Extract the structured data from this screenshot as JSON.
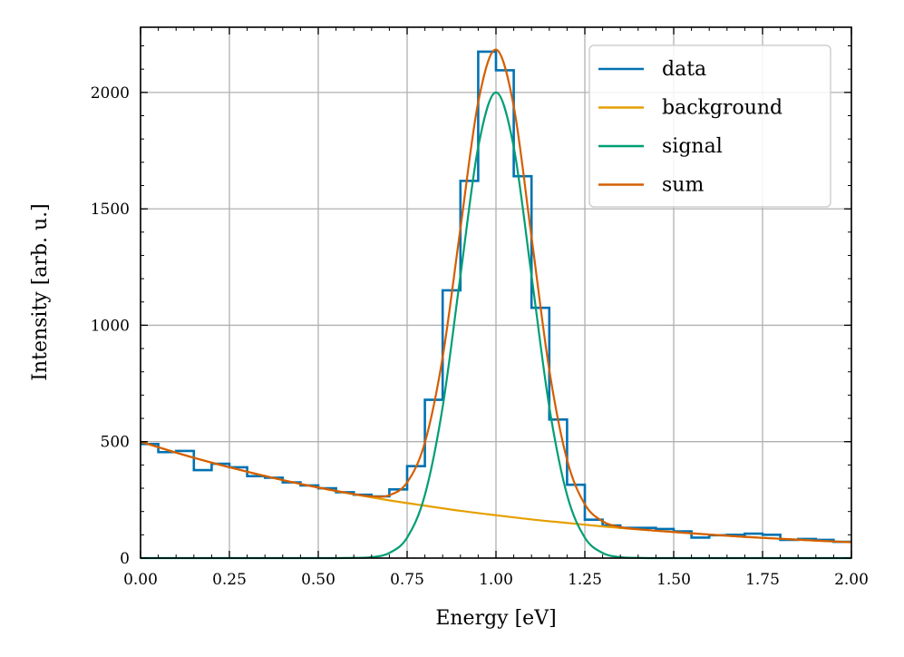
{
  "chart_data": {
    "type": "line",
    "title": "",
    "xlabel": "Energy [eV]",
    "ylabel": "Intensity [arb. u.]",
    "xlim": [
      0.0,
      2.0
    ],
    "ylim": [
      0,
      2280
    ],
    "grid": true,
    "legend_position": "top-right",
    "x_ticks": [
      {
        "value": 0.0,
        "label": "0.00"
      },
      {
        "value": 0.25,
        "label": "0.25"
      },
      {
        "value": 0.5,
        "label": "0.50"
      },
      {
        "value": 0.75,
        "label": "0.75"
      },
      {
        "value": 1.0,
        "label": "1.00"
      },
      {
        "value": 1.25,
        "label": "1.25"
      },
      {
        "value": 1.5,
        "label": "1.50"
      },
      {
        "value": 1.75,
        "label": "1.75"
      },
      {
        "value": 2.0,
        "label": "2.00"
      }
    ],
    "y_ticks": [
      {
        "value": 0,
        "label": "0"
      },
      {
        "value": 500,
        "label": "500"
      },
      {
        "value": 1000,
        "label": "1000"
      },
      {
        "value": 1500,
        "label": "1500"
      },
      {
        "value": 2000,
        "label": "2000"
      }
    ],
    "series": [
      {
        "name": "data",
        "kind": "step-histogram",
        "color": "#0072b2",
        "bin_edges": [
          0.0,
          0.05,
          0.1,
          0.15,
          0.2,
          0.25,
          0.3,
          0.35,
          0.4,
          0.45,
          0.5,
          0.55,
          0.6,
          0.65,
          0.7,
          0.75,
          0.8,
          0.85,
          0.9,
          0.95,
          1.0,
          1.05,
          1.1,
          1.15,
          1.2,
          1.25,
          1.3,
          1.35,
          1.4,
          1.45,
          1.5,
          1.55,
          1.6,
          1.65,
          1.7,
          1.75,
          1.8,
          1.85,
          1.9,
          1.95,
          2.0
        ],
        "values": [
          490,
          455,
          460,
          378,
          405,
          390,
          352,
          345,
          325,
          312,
          300,
          283,
          272,
          265,
          295,
          395,
          680,
          1150,
          1620,
          2175,
          2095,
          1640,
          1075,
          595,
          315,
          165,
          140,
          130,
          130,
          125,
          115,
          88,
          98,
          100,
          105,
          100,
          78,
          82,
          78,
          70
        ]
      },
      {
        "name": "background",
        "kind": "function",
        "color": "#e69f00",
        "x": [
          0.0,
          0.1,
          0.2,
          0.3,
          0.4,
          0.5,
          0.6,
          0.7,
          0.8,
          0.9,
          1.0,
          1.1,
          1.2,
          1.3,
          1.4,
          1.5,
          1.6,
          1.7,
          1.8,
          1.9,
          2.0
        ],
        "y": [
          500,
          453,
          410,
          371,
          335,
          303,
          274,
          248,
          225,
          203,
          184,
          166,
          151,
          136,
          123,
          112,
          101,
          91,
          83,
          75,
          68
        ]
      },
      {
        "name": "signal",
        "kind": "function",
        "color": "#009e73",
        "x": [
          0.0,
          0.5,
          0.6,
          0.65,
          0.7,
          0.75,
          0.8,
          0.85,
          0.9,
          0.95,
          1.0,
          1.05,
          1.1,
          1.15,
          1.2,
          1.25,
          1.3,
          1.35,
          1.4,
          1.5,
          2.0
        ],
        "y": [
          0,
          0,
          1,
          4,
          22,
          88,
          271,
          649,
          1213,
          1765,
          2000,
          1765,
          1213,
          649,
          271,
          88,
          22,
          4,
          1,
          0,
          0
        ]
      },
      {
        "name": "sum",
        "kind": "function",
        "color": "#d55e00",
        "x": [
          0.0,
          0.1,
          0.2,
          0.3,
          0.4,
          0.5,
          0.6,
          0.65,
          0.7,
          0.75,
          0.8,
          0.85,
          0.9,
          0.95,
          1.0,
          1.05,
          1.1,
          1.15,
          1.2,
          1.25,
          1.3,
          1.35,
          1.4,
          1.5,
          1.6,
          1.7,
          1.8,
          1.9,
          2.0
        ],
        "y": [
          500,
          453,
          410,
          371,
          335,
          303,
          275,
          265,
          270,
          325,
          496,
          863,
          1416,
          1958,
          2184,
          1940,
          1379,
          808,
          422,
          231,
          158,
          133,
          124,
          112,
          101,
          91,
          83,
          75,
          68
        ]
      }
    ]
  }
}
